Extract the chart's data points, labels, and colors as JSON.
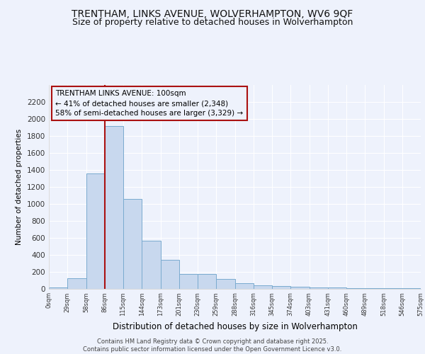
{
  "title": "TRENTHAM, LINKS AVENUE, WOLVERHAMPTON, WV6 9QF",
  "subtitle": "Size of property relative to detached houses in Wolverhampton",
  "xlabel": "Distribution of detached houses by size in Wolverhampton",
  "ylabel": "Number of detached properties",
  "bar_values": [
    10,
    125,
    1360,
    1920,
    1055,
    560,
    340,
    170,
    170,
    110,
    60,
    40,
    30,
    25,
    15,
    10,
    5,
    5,
    5,
    5
  ],
  "categories": [
    "0sqm",
    "29sqm",
    "58sqm",
    "86sqm",
    "115sqm",
    "144sqm",
    "173sqm",
    "201sqm",
    "230sqm",
    "259sqm",
    "288sqm",
    "316sqm",
    "345sqm",
    "374sqm",
    "403sqm",
    "431sqm",
    "460sqm",
    "489sqm",
    "518sqm",
    "546sqm",
    "575sqm"
  ],
  "bar_color": "#c8d8ee",
  "bar_edge_color": "#7aabcf",
  "vline_x": 3,
  "vline_color": "#aa1111",
  "annotation_text": "TRENTHAM LINKS AVENUE: 100sqm\n← 41% of detached houses are smaller (2,348)\n58% of semi-detached houses are larger (3,329) →",
  "annotation_box_facecolor": "#eef2fc",
  "annotation_box_edgecolor": "#aa1111",
  "ylim": [
    0,
    2400
  ],
  "yticks": [
    0,
    200,
    400,
    600,
    800,
    1000,
    1200,
    1400,
    1600,
    1800,
    2000,
    2200
  ],
  "background_color": "#eef2fc",
  "grid_color": "#ffffff",
  "footer": "Contains HM Land Registry data © Crown copyright and database right 2025.\nContains public sector information licensed under the Open Government Licence v3.0.",
  "title_fontsize": 10,
  "subtitle_fontsize": 9
}
